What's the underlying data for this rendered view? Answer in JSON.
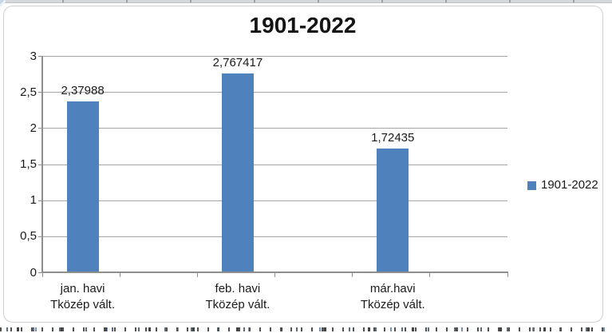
{
  "colors": {
    "bar": "#4f81bd",
    "gridline": "#a6a6a6",
    "axis": "#8e8e8e",
    "frame_border": "#cfcfcf",
    "text": "#1a1a1a"
  },
  "chart_data": {
    "type": "bar",
    "title": "1901-2022",
    "series_name": "1901-2022",
    "categories": [
      "jan. havi\nTközép vált.",
      "feb. havi\nTközép vált.",
      "már.havi\nTközép vált."
    ],
    "values": [
      2.37988,
      2.767417,
      1.72435
    ],
    "data_labels": [
      "2,37988",
      "2,767417",
      "1,72435"
    ],
    "ylim": [
      0,
      3
    ],
    "ytick_labels": [
      "0",
      "0,5",
      "1",
      "1,5",
      "2",
      "2,5",
      "3"
    ],
    "ytick_step": 0.5,
    "grid": true,
    "legend_position": "right",
    "bar_color": "#4f81bd",
    "decimal_separator": ",",
    "category_slots": 6,
    "bar_slot_indices": [
      0,
      2,
      4
    ]
  }
}
